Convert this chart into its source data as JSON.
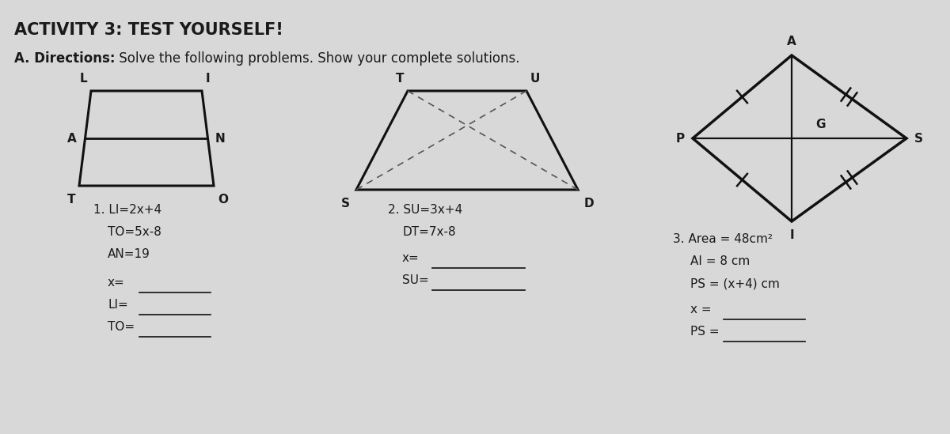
{
  "title": "ACTIVITY 3: TEST YOURSELF!",
  "subtitle_bold": "A. Directions:",
  "subtitle_regular": " Solve the following problems. Show your complete solutions.",
  "bg_color": "#d8d8d8",
  "text_color": "#1a1a1a",
  "shape1_label": "1. LI=2x+4",
  "shape1_lines": [
    "TO=5x-8",
    "AN=19"
  ],
  "shape1_blanks": [
    "x=",
    "LI=",
    "TO="
  ],
  "shape2_label": "2. SU=3x+4",
  "shape2_lines": [
    "DT=7x-8"
  ],
  "shape2_blanks": [
    "x=",
    "SU="
  ],
  "shape3_label": "3. Area = 48cm²",
  "shape3_lines": [
    "AI = 8 cm",
    "PS = (x+4) cm"
  ],
  "shape3_blanks": [
    "x =",
    "PS ="
  ],
  "line_color": "#111111",
  "dashed_color": "#555555"
}
